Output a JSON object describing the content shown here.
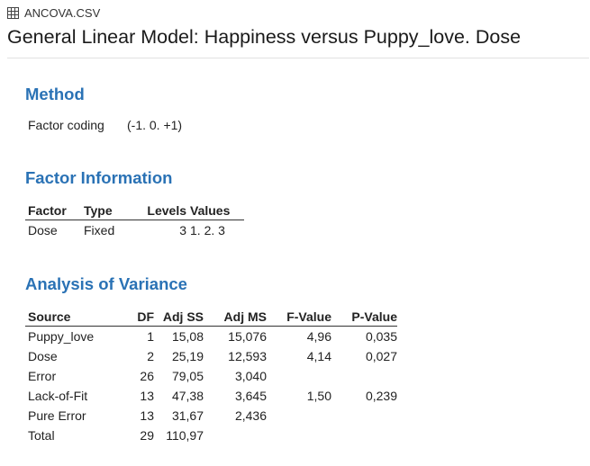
{
  "file": {
    "icon": "table-grid-icon",
    "name": "ANCOVA.CSV"
  },
  "title": "General Linear Model: Happiness versus Puppy_love. Dose",
  "method": {
    "heading": "Method",
    "label": "Factor coding",
    "value": "(-1. 0. +1)"
  },
  "factor_information": {
    "heading": "Factor Information",
    "headers": [
      "Factor",
      "Type",
      "Levels",
      "Values"
    ],
    "rows": [
      [
        "Dose",
        "Fixed",
        "3",
        "1. 2. 3"
      ]
    ]
  },
  "analysis_of_variance": {
    "heading": "Analysis of Variance",
    "headers": [
      "Source",
      "DF",
      "Adj SS",
      "Adj MS",
      "F-Value",
      "P-Value"
    ],
    "rows": [
      [
        "Puppy_love",
        "1",
        "15,08",
        "15,076",
        "4,96",
        "0,035"
      ],
      [
        "Dose",
        "2",
        "25,19",
        "12,593",
        "4,14",
        "0,027"
      ],
      [
        "Error",
        "26",
        "79,05",
        "3,040",
        "",
        ""
      ],
      [
        "Lack-of-Fit",
        "13",
        "47,38",
        "3,645",
        "1,50",
        "0,239"
      ],
      [
        "Pure Error",
        "13",
        "31,67",
        "2,436",
        "",
        ""
      ],
      [
        "Total",
        "29",
        "110,97",
        "",
        "",
        ""
      ]
    ]
  },
  "colors": {
    "section_heading": "#2a72b5",
    "text": "#222222"
  }
}
